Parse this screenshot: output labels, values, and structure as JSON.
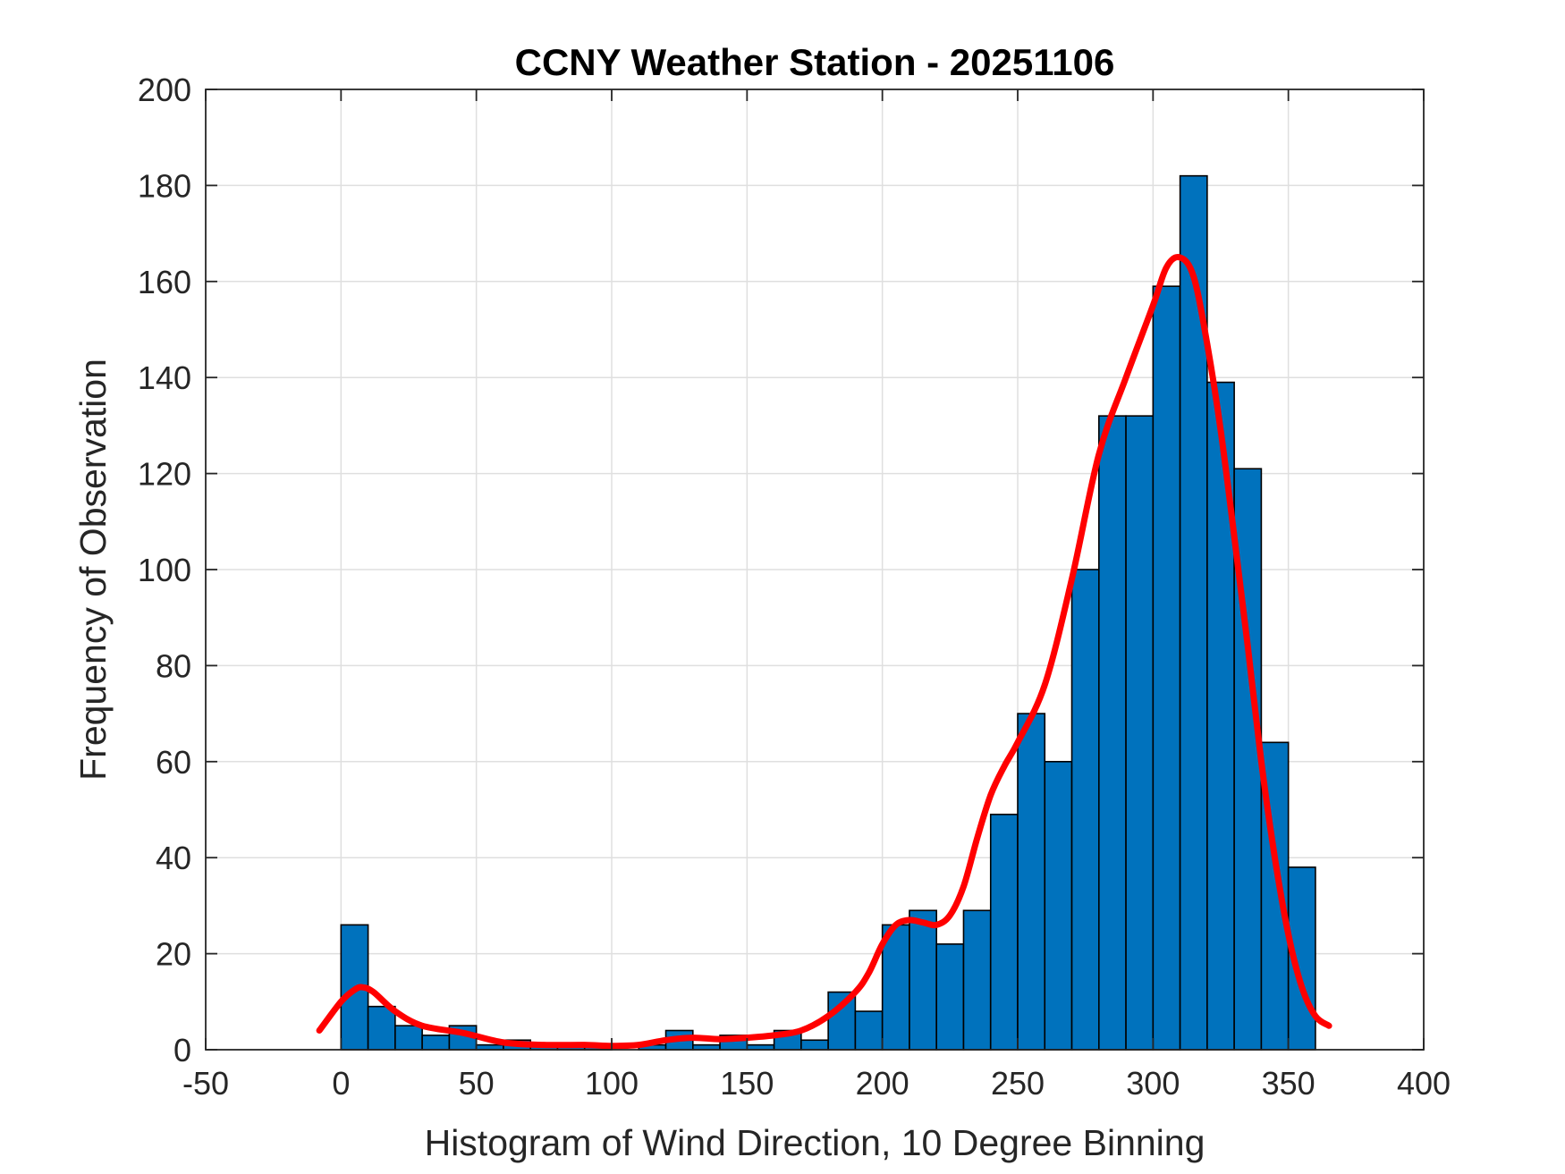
{
  "chart_data": {
    "type": "bar",
    "title": "CCNY Weather Station - 20251106",
    "xlabel": "Histogram of Wind Direction, 10 Degree Binning",
    "ylabel": "Frequency of Observation",
    "xlim": [
      -50,
      400
    ],
    "ylim": [
      0,
      200
    ],
    "xticks": [
      -50,
      0,
      50,
      100,
      150,
      200,
      250,
      300,
      350,
      400
    ],
    "yticks": [
      0,
      20,
      40,
      60,
      80,
      100,
      120,
      140,
      160,
      180,
      200
    ],
    "grid": true,
    "bin_width": 10,
    "bin_edges": [
      0,
      10,
      20,
      30,
      40,
      50,
      60,
      70,
      80,
      90,
      100,
      110,
      120,
      130,
      140,
      150,
      160,
      170,
      180,
      190,
      200,
      210,
      220,
      230,
      240,
      250,
      260,
      270,
      280,
      290,
      300,
      310,
      320,
      330,
      340,
      350,
      360
    ],
    "values": [
      26,
      9,
      5,
      3,
      5,
      1,
      2,
      1,
      1,
      1,
      0,
      1,
      4,
      1,
      3,
      1,
      4,
      2,
      12,
      8,
      26,
      29,
      22,
      29,
      49,
      70,
      60,
      100,
      132,
      132,
      159,
      182,
      139,
      121,
      64,
      38
    ],
    "bar_color": "#0072BD",
    "series": [
      {
        "type": "line",
        "color": "#FF0000",
        "x": [
          -8,
          0,
          5,
          8,
          12,
          20,
          30,
          45,
          60,
          75,
          90,
          100,
          110,
          120,
          130,
          140,
          150,
          160,
          170,
          180,
          190,
          195,
          200,
          205,
          210,
          215,
          220,
          225,
          230,
          235,
          240,
          245,
          250,
          260,
          270,
          280,
          290,
          300,
          305,
          310,
          315,
          320,
          325,
          330,
          335,
          340,
          345,
          350,
          355,
          360,
          365
        ],
        "y": [
          4,
          10,
          12.5,
          13,
          12,
          8,
          5,
          3.5,
          1.5,
          1,
          1,
          0.8,
          1,
          2,
          2.5,
          2.2,
          2.5,
          3,
          4,
          7,
          12,
          16,
          22,
          26,
          27,
          26.5,
          26,
          28,
          34,
          44,
          53,
          59,
          64,
          76,
          98,
          124,
          140,
          155,
          163,
          165,
          161,
          147,
          129,
          107,
          84,
          60,
          40,
          24,
          13,
          7,
          5
        ]
      }
    ]
  }
}
